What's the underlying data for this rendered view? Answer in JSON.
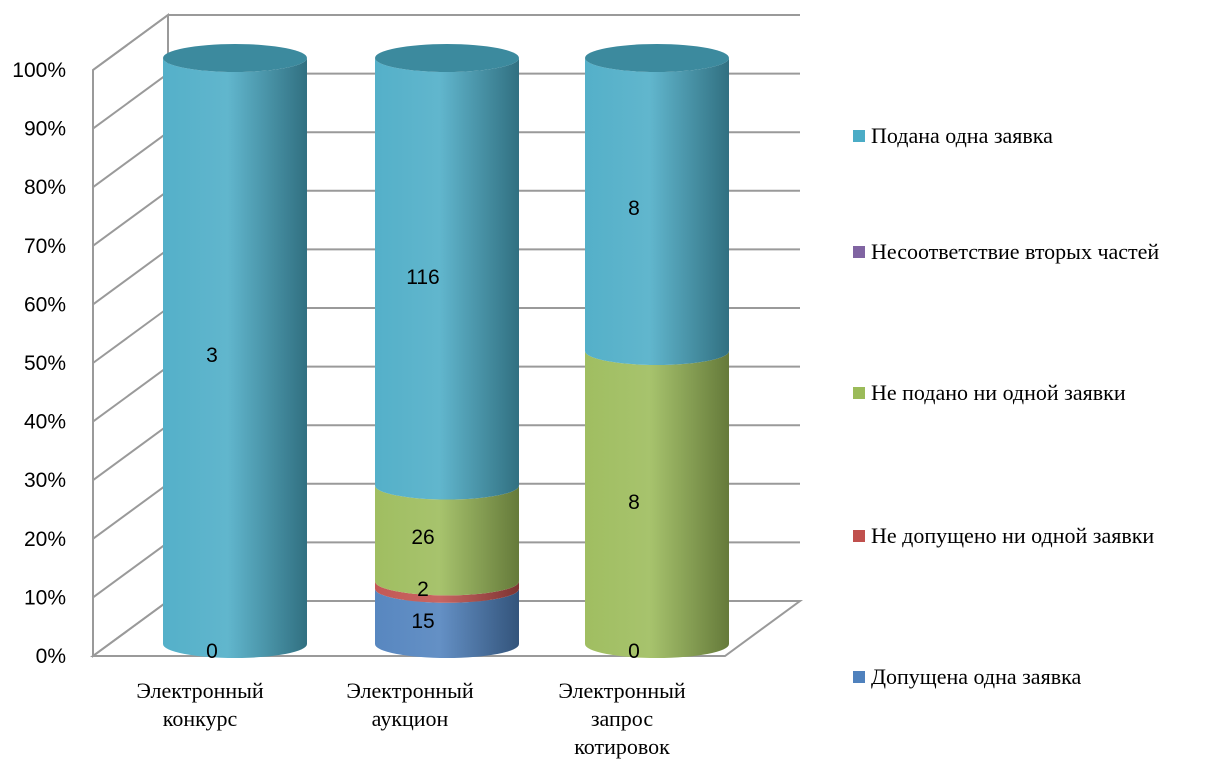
{
  "chart_data": {
    "type": "bar",
    "stacked": "percent",
    "style": "3d-cylinder",
    "title": "",
    "xlabel": "",
    "ylabel": "",
    "ylim": [
      0,
      100
    ],
    "y_ticks": [
      "0%",
      "10%",
      "20%",
      "30%",
      "40%",
      "50%",
      "60%",
      "70%",
      "80%",
      "90%",
      "100%"
    ],
    "categories": [
      [
        "Электронный",
        "конкурс"
      ],
      [
        "Электронный",
        "аукцион"
      ],
      [
        "Электронный",
        "запрос",
        "котировок"
      ]
    ],
    "series": [
      {
        "name": "Допущена одна заявка",
        "color": "#4f81bd",
        "values": [
          0,
          15,
          0
        ]
      },
      {
        "name": "Не допущено ни одной заявки",
        "color": "#c0504d",
        "values": [
          0,
          2,
          0
        ]
      },
      {
        "name": "Не подано ни одной заявки",
        "color": "#9bbb59",
        "values": [
          0,
          26,
          8
        ]
      },
      {
        "name": "Несоответствие вторых частей",
        "color": "#8064a2",
        "values": [
          0,
          0,
          0
        ]
      },
      {
        "name": "Подана одна заявка",
        "color": "#4bacc6",
        "values": [
          3,
          116,
          8
        ]
      }
    ],
    "data_labels": [
      [
        "0",
        "3"
      ],
      [
        "15",
        "2",
        "26",
        "116"
      ],
      [
        "0",
        "8",
        "8"
      ]
    ],
    "grid": true,
    "legend_position": "right"
  },
  "legend_order": [
    "Подана одна заявка",
    "Несоответствие вторых частей",
    "Не подано ни одной заявки",
    "Не допущено ни одной заявки",
    "Допущена одна заявка"
  ]
}
